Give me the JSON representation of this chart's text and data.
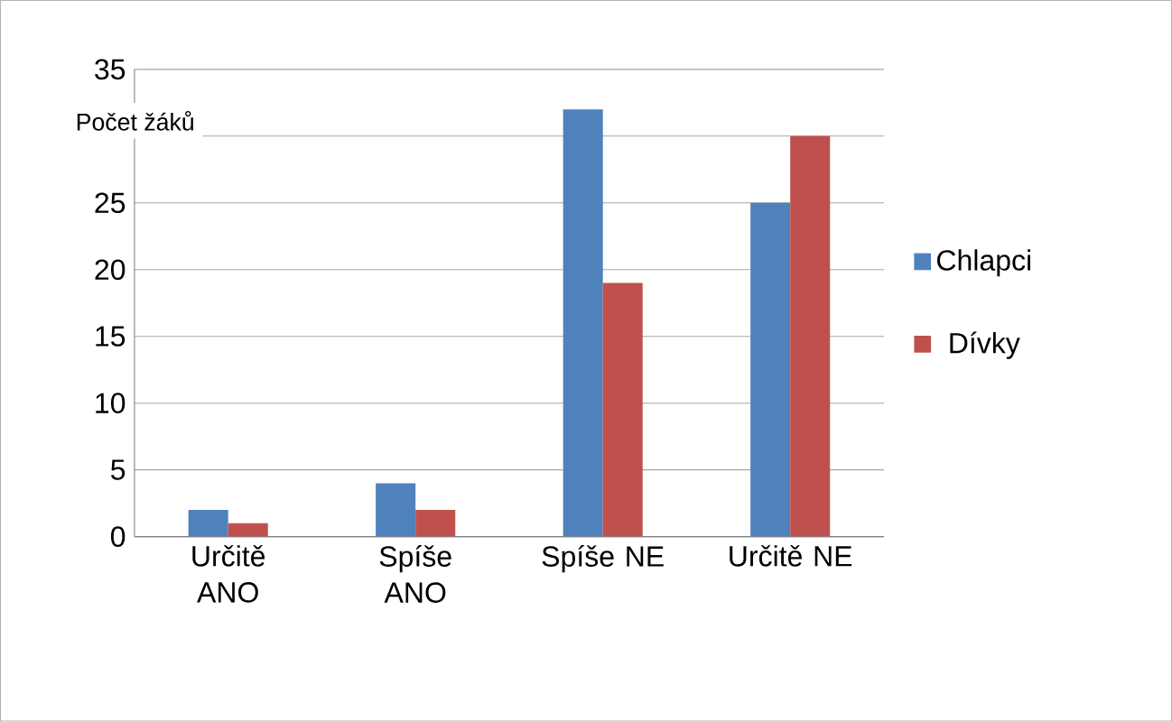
{
  "chart_data": {
    "type": "bar",
    "ylabel": "Počet žáků",
    "categories": [
      "Určitě ANO",
      "Spíše ANO",
      "Spíše NE",
      "Určitě NE"
    ],
    "series": [
      {
        "name": "Chlapci",
        "color": "#4f81bd",
        "values": [
          2,
          4,
          32,
          25
        ]
      },
      {
        "name": "Dívky",
        "color": "#c0504d",
        "values": [
          1,
          2,
          19,
          30
        ]
      }
    ],
    "ylim": [
      0,
      35
    ],
    "yticks": [
      0,
      5,
      10,
      15,
      20,
      25,
      {
        "value": 30,
        "label": null
      },
      35
    ],
    "grid": "y",
    "legend": "right"
  }
}
